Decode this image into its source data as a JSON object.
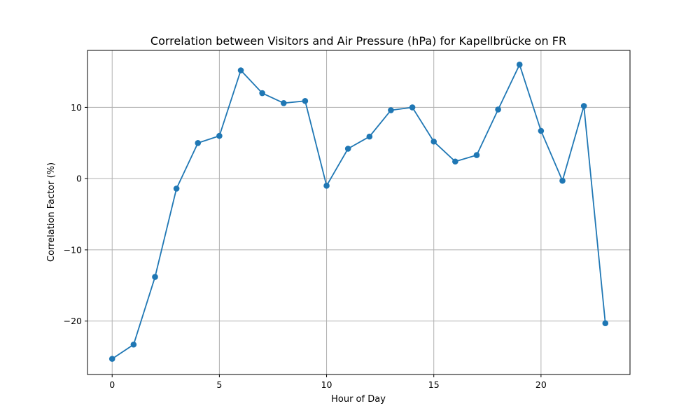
{
  "chart_data": {
    "type": "line",
    "title": "Correlation between Visitors and Air Pressure (hPa) for Kapellbrücke on FR",
    "xlabel": "Hour of Day",
    "ylabel": "Correlation Factor (%)",
    "xlim": [
      -1.15,
      24.15
    ],
    "ylim": [
      -27.5,
      18.0
    ],
    "xticks": [
      0,
      5,
      10,
      15,
      20
    ],
    "yticks": [
      -20,
      -10,
      0,
      10
    ],
    "xtick_labels": [
      "0",
      "5",
      "10",
      "15",
      "20"
    ],
    "ytick_labels": [
      "−20",
      "−10",
      "0",
      "10"
    ],
    "grid": true,
    "marker": "circle",
    "series": [
      {
        "color": "#1f77b4",
        "x": [
          0,
          1,
          2,
          3,
          4,
          5,
          6,
          7,
          8,
          9,
          10,
          11,
          12,
          13,
          14,
          15,
          16,
          17,
          18,
          19,
          20,
          21,
          22,
          23
        ],
        "y": [
          -25.3,
          -23.3,
          -13.8,
          -1.4,
          5.0,
          6.0,
          15.2,
          12.0,
          10.6,
          10.9,
          -1.0,
          4.2,
          5.9,
          9.6,
          10.0,
          5.2,
          2.4,
          3.3,
          9.7,
          16.0,
          6.7,
          -0.3,
          10.2,
          -20.3
        ]
      }
    ]
  }
}
